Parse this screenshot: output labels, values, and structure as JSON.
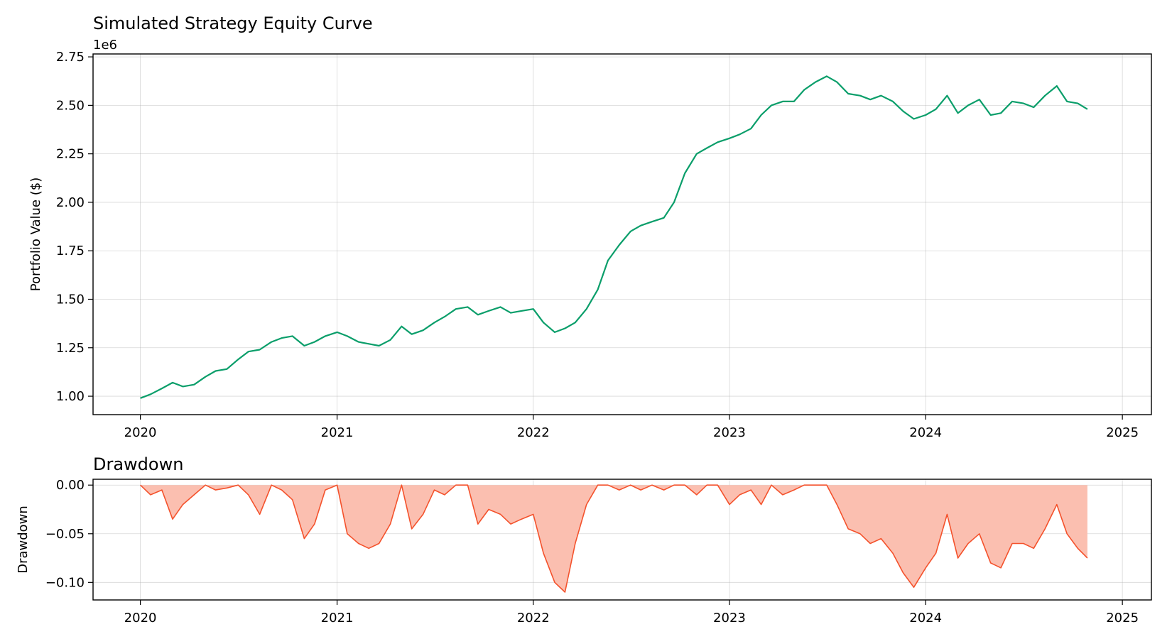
{
  "chart_data": [
    {
      "type": "line",
      "title": "Simulated Strategy Equity Curve",
      "ylabel": "Portfolio Value ($)",
      "xlabel": "",
      "y_offset_label": "1e6",
      "y_scale": 1000000,
      "xlim": [
        "2019-10-05",
        "2025-02-24"
      ],
      "ylim": [
        0.905,
        2.765
      ],
      "grid": true,
      "color": "#0a9e6a",
      "x_ticks": [
        "2020-01-01",
        "2021-01-01",
        "2022-01-01",
        "2023-01-01",
        "2024-01-01",
        "2025-01-01"
      ],
      "x_tick_labels": [
        "2020",
        "2021",
        "2022",
        "2023",
        "2024",
        "2025"
      ],
      "y_ticks": [
        1.0,
        1.25,
        1.5,
        1.75,
        2.0,
        2.25,
        2.5,
        2.75
      ],
      "y_tick_labels": [
        "1.00",
        "1.25",
        "1.50",
        "1.75",
        "2.00",
        "2.25",
        "2.50",
        "2.75"
      ],
      "series": [
        {
          "x": [
            "2020-01-01",
            "2020-01-20",
            "2020-02-10",
            "2020-03-01",
            "2020-03-20",
            "2020-04-10",
            "2020-05-01",
            "2020-05-20",
            "2020-06-10",
            "2020-07-01",
            "2020-07-20",
            "2020-08-10",
            "2020-09-01",
            "2020-09-20",
            "2020-10-10",
            "2020-11-01",
            "2020-11-20",
            "2020-12-10",
            "2021-01-01",
            "2021-01-20",
            "2021-02-10",
            "2021-03-01",
            "2021-03-20",
            "2021-04-10",
            "2021-05-01",
            "2021-05-20",
            "2021-06-10",
            "2021-07-01",
            "2021-07-20",
            "2021-08-10",
            "2021-09-01",
            "2021-09-20",
            "2021-10-10",
            "2021-11-01",
            "2021-11-20",
            "2021-12-10",
            "2022-01-01",
            "2022-01-20",
            "2022-02-10",
            "2022-03-01",
            "2022-03-20",
            "2022-04-10",
            "2022-05-01",
            "2022-05-20",
            "2022-06-10",
            "2022-07-01",
            "2022-07-20",
            "2022-08-10",
            "2022-09-01",
            "2022-09-20",
            "2022-10-10",
            "2022-11-01",
            "2022-11-20",
            "2022-12-10",
            "2023-01-01",
            "2023-01-20",
            "2023-02-10",
            "2023-03-01",
            "2023-03-20",
            "2023-04-10",
            "2023-05-01",
            "2023-05-20",
            "2023-06-10",
            "2023-07-01",
            "2023-07-20",
            "2023-08-10",
            "2023-09-01",
            "2023-09-20",
            "2023-10-10",
            "2023-11-01",
            "2023-11-20",
            "2023-12-10",
            "2024-01-01",
            "2024-01-20",
            "2024-02-10",
            "2024-03-01",
            "2024-03-20",
            "2024-04-10",
            "2024-05-01",
            "2024-05-20",
            "2024-06-10",
            "2024-07-01",
            "2024-07-20",
            "2024-08-10",
            "2024-09-01",
            "2024-09-20",
            "2024-10-10",
            "2024-10-28"
          ],
          "values": [
            0.99,
            1.01,
            1.04,
            1.07,
            1.05,
            1.06,
            1.1,
            1.13,
            1.14,
            1.19,
            1.23,
            1.24,
            1.28,
            1.3,
            1.31,
            1.26,
            1.28,
            1.31,
            1.33,
            1.31,
            1.28,
            1.27,
            1.26,
            1.29,
            1.36,
            1.32,
            1.34,
            1.38,
            1.41,
            1.45,
            1.46,
            1.42,
            1.44,
            1.46,
            1.43,
            1.44,
            1.45,
            1.38,
            1.33,
            1.35,
            1.38,
            1.45,
            1.55,
            1.7,
            1.78,
            1.85,
            1.88,
            1.9,
            1.92,
            2.0,
            2.15,
            2.25,
            2.28,
            2.31,
            2.33,
            2.35,
            2.38,
            2.45,
            2.5,
            2.52,
            2.52,
            2.58,
            2.62,
            2.65,
            2.62,
            2.56,
            2.55,
            2.53,
            2.55,
            2.52,
            2.47,
            2.43,
            2.45,
            2.48,
            2.55,
            2.46,
            2.5,
            2.53,
            2.45,
            2.46,
            2.52,
            2.51,
            2.49,
            2.55,
            2.6,
            2.52,
            2.51,
            2.48
          ]
        }
      ]
    },
    {
      "type": "area",
      "title": "Drawdown",
      "ylabel": "Drawdown",
      "xlabel": "",
      "xlim": [
        "2019-10-05",
        "2025-02-24"
      ],
      "ylim": [
        -0.118,
        0.006
      ],
      "grid": true,
      "line_color": "#f4522c",
      "fill_color": "#fbbfb0",
      "x_ticks": [
        "2020-01-01",
        "2021-01-01",
        "2022-01-01",
        "2023-01-01",
        "2024-01-01",
        "2025-01-01"
      ],
      "x_tick_labels": [
        "2020",
        "2021",
        "2022",
        "2023",
        "2024",
        "2025"
      ],
      "y_ticks": [
        0.0,
        -0.05,
        -0.1
      ],
      "y_tick_labels": [
        "0.00",
        "−0.05",
        "−0.10"
      ],
      "series": [
        {
          "x": [
            "2020-01-01",
            "2020-01-20",
            "2020-02-10",
            "2020-03-01",
            "2020-03-20",
            "2020-04-10",
            "2020-05-01",
            "2020-05-20",
            "2020-06-10",
            "2020-07-01",
            "2020-07-20",
            "2020-08-10",
            "2020-09-01",
            "2020-09-20",
            "2020-10-10",
            "2020-11-01",
            "2020-11-20",
            "2020-12-10",
            "2021-01-01",
            "2021-01-20",
            "2021-02-10",
            "2021-03-01",
            "2021-03-20",
            "2021-04-10",
            "2021-05-01",
            "2021-05-20",
            "2021-06-10",
            "2021-07-01",
            "2021-07-20",
            "2021-08-10",
            "2021-09-01",
            "2021-09-20",
            "2021-10-10",
            "2021-11-01",
            "2021-11-20",
            "2021-12-10",
            "2022-01-01",
            "2022-01-20",
            "2022-02-10",
            "2022-03-01",
            "2022-03-20",
            "2022-04-10",
            "2022-05-01",
            "2022-05-20",
            "2022-06-10",
            "2022-07-01",
            "2022-07-20",
            "2022-08-10",
            "2022-09-01",
            "2022-09-20",
            "2022-10-10",
            "2022-11-01",
            "2022-11-20",
            "2022-12-10",
            "2023-01-01",
            "2023-01-20",
            "2023-02-10",
            "2023-03-01",
            "2023-03-20",
            "2023-04-10",
            "2023-05-01",
            "2023-05-20",
            "2023-06-10",
            "2023-07-01",
            "2023-07-20",
            "2023-08-10",
            "2023-09-01",
            "2023-09-20",
            "2023-10-10",
            "2023-11-01",
            "2023-11-20",
            "2023-12-10",
            "2024-01-01",
            "2024-01-20",
            "2024-02-10",
            "2024-03-01",
            "2024-03-20",
            "2024-04-10",
            "2024-05-01",
            "2024-05-20",
            "2024-06-10",
            "2024-07-01",
            "2024-07-20",
            "2024-08-10",
            "2024-09-01",
            "2024-09-20",
            "2024-10-10",
            "2024-10-28"
          ],
          "values": [
            0.0,
            -0.01,
            -0.005,
            -0.035,
            -0.02,
            -0.01,
            0.0,
            -0.005,
            -0.003,
            0.0,
            -0.01,
            -0.03,
            0.0,
            -0.005,
            -0.015,
            -0.055,
            -0.04,
            -0.005,
            0.0,
            -0.05,
            -0.06,
            -0.065,
            -0.06,
            -0.04,
            0.0,
            -0.045,
            -0.03,
            -0.005,
            -0.01,
            0.0,
            0.0,
            -0.04,
            -0.025,
            -0.03,
            -0.04,
            -0.035,
            -0.03,
            -0.07,
            -0.1,
            -0.11,
            -0.06,
            -0.02,
            0.0,
            0.0,
            -0.005,
            0.0,
            -0.005,
            0.0,
            -0.005,
            0.0,
            0.0,
            -0.01,
            0.0,
            0.0,
            -0.02,
            -0.01,
            -0.005,
            -0.02,
            0.0,
            -0.01,
            -0.005,
            0.0,
            0.0,
            0.0,
            -0.02,
            -0.045,
            -0.05,
            -0.06,
            -0.055,
            -0.07,
            -0.09,
            -0.105,
            -0.085,
            -0.07,
            -0.03,
            -0.075,
            -0.06,
            -0.05,
            -0.08,
            -0.085,
            -0.06,
            -0.06,
            -0.065,
            -0.045,
            -0.02,
            -0.05,
            -0.065,
            -0.075
          ]
        }
      ]
    }
  ]
}
